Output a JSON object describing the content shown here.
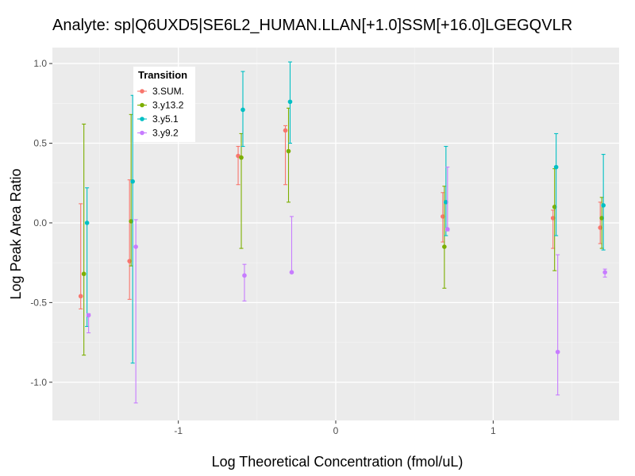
{
  "chart_data": {
    "type": "scatter",
    "title": "Analyte: sp|Q6UXD5|SE6L2_HUMAN.LLAN[+1.0]SSM[+16.0]LGEGQVLR",
    "xlabel": "Log Theoretical Concentration (fmol/uL)",
    "ylabel": "Log Peak Area Ratio",
    "xlim": [
      -1.8,
      1.8
    ],
    "ylim": [
      -1.24,
      1.1
    ],
    "x_ticks": [
      -1,
      0,
      1
    ],
    "x_tick_labels": [
      "-1",
      "0",
      "1"
    ],
    "y_ticks": [
      -1.0,
      -0.5,
      0.0,
      0.5,
      1.0
    ],
    "y_tick_labels": [
      "-1.0",
      "-0.5",
      "0.0",
      "0.5",
      "1.0"
    ],
    "grid": true,
    "error_bars": true,
    "legend": {
      "title": "Transition",
      "placement": "top-left"
    },
    "series": [
      {
        "name": "3.SUM.",
        "color": "#F8766D",
        "points": [
          {
            "x": -1.62,
            "y": -0.46,
            "ymin": -0.54,
            "ymax": 0.12
          },
          {
            "x": -1.31,
            "y": -0.24,
            "ymin": -0.48,
            "ymax": 0.27
          },
          {
            "x": -0.62,
            "y": 0.42,
            "ymin": 0.24,
            "ymax": 0.48
          },
          {
            "x": -0.32,
            "y": 0.58,
            "ymin": 0.24,
            "ymax": 0.61
          },
          {
            "x": 0.68,
            "y": 0.04,
            "ymin": -0.12,
            "ymax": 0.19
          },
          {
            "x": 1.38,
            "y": 0.03,
            "ymin": -0.16,
            "ymax": 0.08
          },
          {
            "x": 1.68,
            "y": -0.03,
            "ymin": -0.13,
            "ymax": 0.13
          }
        ]
      },
      {
        "name": "3.y13.2",
        "color": "#7CAE00",
        "points": [
          {
            "x": -1.6,
            "y": -0.32,
            "ymin": -0.83,
            "ymax": 0.62
          },
          {
            "x": -1.3,
            "y": 0.01,
            "ymin": -0.27,
            "ymax": 0.68
          },
          {
            "x": -0.6,
            "y": 0.41,
            "ymin": -0.16,
            "ymax": 0.56
          },
          {
            "x": -0.3,
            "y": 0.45,
            "ymin": 0.13,
            "ymax": 0.72
          },
          {
            "x": 0.69,
            "y": -0.15,
            "ymin": -0.41,
            "ymax": 0.23
          },
          {
            "x": 1.39,
            "y": 0.1,
            "ymin": -0.3,
            "ymax": 0.34
          },
          {
            "x": 1.69,
            "y": 0.03,
            "ymin": -0.16,
            "ymax": 0.16
          }
        ]
      },
      {
        "name": "3.y5.1",
        "color": "#00BFC4",
        "points": [
          {
            "x": -1.58,
            "y": 0.0,
            "ymin": -0.65,
            "ymax": 0.22
          },
          {
            "x": -1.29,
            "y": 0.26,
            "ymin": -0.88,
            "ymax": 0.8
          },
          {
            "x": -0.59,
            "y": 0.71,
            "ymin": 0.48,
            "ymax": 0.95
          },
          {
            "x": -0.29,
            "y": 0.76,
            "ymin": 0.5,
            "ymax": 1.01
          },
          {
            "x": 0.7,
            "y": 0.13,
            "ymin": -0.08,
            "ymax": 0.48
          },
          {
            "x": 1.4,
            "y": 0.35,
            "ymin": -0.08,
            "ymax": 0.56
          },
          {
            "x": 1.7,
            "y": 0.11,
            "ymin": -0.17,
            "ymax": 0.43
          }
        ]
      },
      {
        "name": "3.y9.2",
        "color": "#C77CFF",
        "points": [
          {
            "x": -1.57,
            "y": -0.58,
            "ymin": -0.69,
            "ymax": -0.57
          },
          {
            "x": -1.27,
            "y": -0.15,
            "ymin": -1.13,
            "ymax": 0.02
          },
          {
            "x": -0.58,
            "y": -0.33,
            "ymin": -0.49,
            "ymax": -0.26
          },
          {
            "x": -0.28,
            "y": -0.31,
            "ymin": -0.31,
            "ymax": 0.04
          },
          {
            "x": 0.71,
            "y": -0.04,
            "ymin": -0.05,
            "ymax": 0.35
          },
          {
            "x": 1.41,
            "y": -0.81,
            "ymin": -1.08,
            "ymax": -0.2
          },
          {
            "x": 1.71,
            "y": -0.31,
            "ymin": -0.34,
            "ymax": -0.29
          }
        ]
      }
    ]
  }
}
